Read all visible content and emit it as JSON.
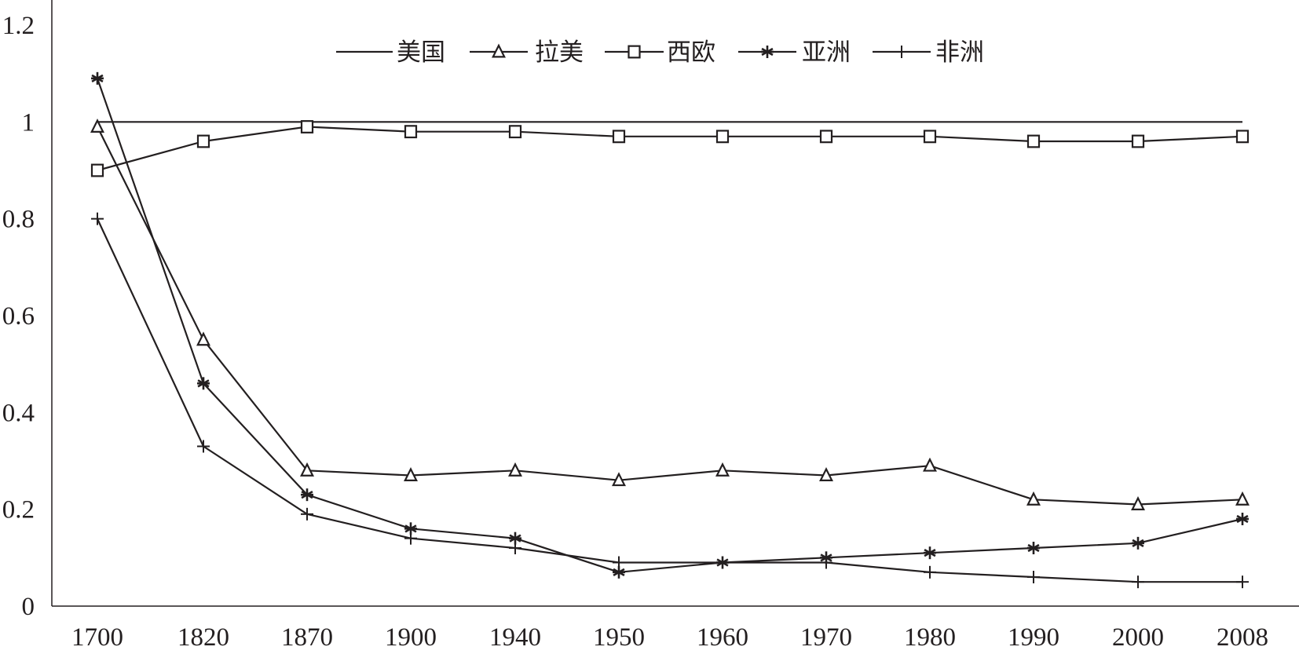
{
  "chart_data": {
    "type": "line",
    "title": "",
    "xlabel": "",
    "ylabel": "",
    "categories": [
      "1700",
      "1820",
      "1870",
      "1900",
      "1940",
      "1950",
      "1960",
      "1970",
      "1980",
      "1990",
      "2000",
      "2008"
    ],
    "y_ticks": [
      "0",
      "0.2",
      "0.4",
      "0.6",
      "0.8",
      "1",
      "1.2"
    ],
    "ylim": [
      0,
      1.2
    ],
    "grid": false,
    "legend_position": "top-center",
    "series": [
      {
        "name": "美国",
        "marker": "none",
        "values": [
          1,
          1,
          1,
          1,
          1,
          1,
          1,
          1,
          1,
          1,
          1,
          1
        ]
      },
      {
        "name": "拉美",
        "marker": "triangle",
        "values": [
          0.99,
          0.55,
          0.28,
          0.27,
          0.28,
          0.26,
          0.28,
          0.27,
          0.29,
          0.22,
          0.21,
          0.22
        ]
      },
      {
        "name": "西欧",
        "marker": "square",
        "values": [
          0.9,
          0.96,
          0.99,
          0.98,
          0.98,
          0.97,
          0.97,
          0.97,
          0.97,
          0.96,
          0.96,
          0.97
        ]
      },
      {
        "name": "亚洲",
        "marker": "asterisk",
        "values": [
          1.09,
          0.46,
          0.23,
          0.16,
          0.14,
          0.07,
          0.09,
          0.1,
          0.11,
          0.12,
          0.13,
          0.18
        ]
      },
      {
        "name": "非洲",
        "marker": "plus",
        "values": [
          0.8,
          0.33,
          0.19,
          0.14,
          0.12,
          0.09,
          0.09,
          0.09,
          0.07,
          0.06,
          0.05,
          0.05
        ]
      }
    ]
  },
  "colors": {
    "ink": "#231f20",
    "background": "#ffffff"
  }
}
